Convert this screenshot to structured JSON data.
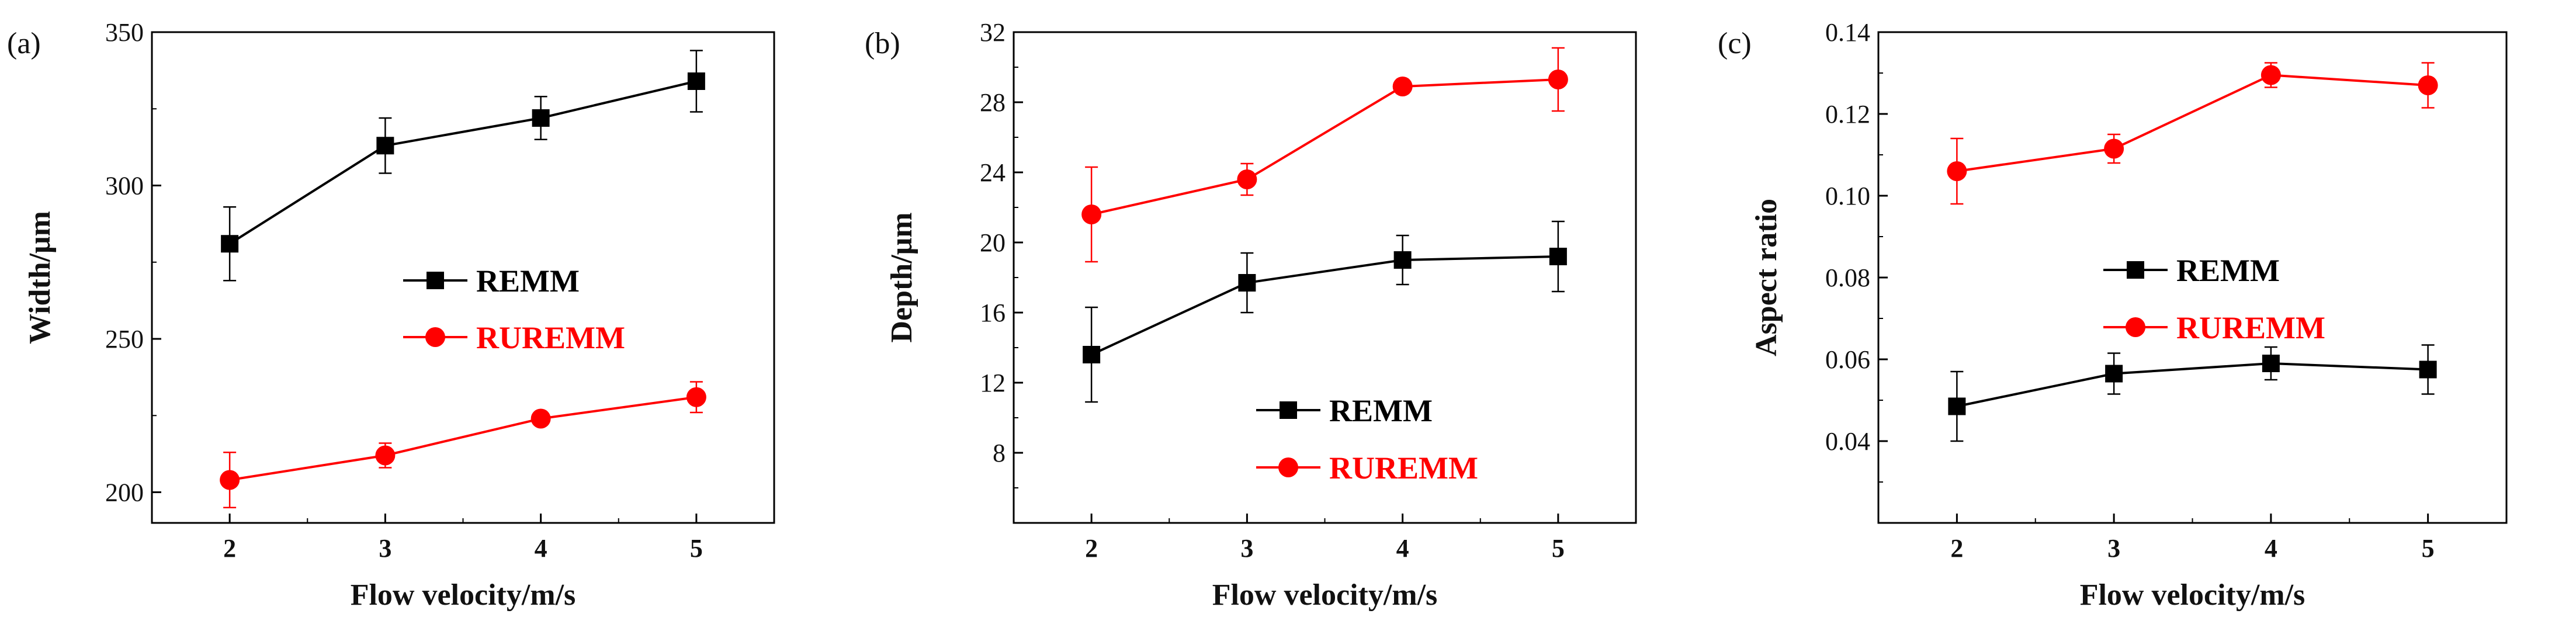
{
  "chart_data": [
    {
      "type": "line",
      "panel_label": "(a)",
      "title": "",
      "xlabel": "Flow velocity/m/s",
      "ylabel": "Width/μm",
      "x": [
        2,
        3,
        4,
        5
      ],
      "xlim": [
        1.5,
        5.5
      ],
      "ylim": [
        190,
        350
      ],
      "yticks": [
        200,
        250,
        300,
        350
      ],
      "grid": false,
      "legend_position": "center-right",
      "series": [
        {
          "name": "REMM",
          "color": "#000000",
          "marker": "square",
          "values": [
            281,
            313,
            322,
            334
          ],
          "errors": [
            12,
            9,
            7,
            10
          ]
        },
        {
          "name": "RUREMM",
          "color": "#ff0000",
          "marker": "circle",
          "values": [
            204,
            212,
            224,
            231
          ],
          "errors": [
            9,
            4,
            2,
            5
          ]
        }
      ]
    },
    {
      "type": "line",
      "panel_label": "(b)",
      "title": "",
      "xlabel": "Flow velocity/m/s",
      "ylabel": "Depth/μm",
      "x": [
        2,
        3,
        4,
        5
      ],
      "xlim": [
        1.5,
        5.5
      ],
      "ylim": [
        4,
        32
      ],
      "yticks": [
        8,
        12,
        16,
        20,
        24,
        28,
        32
      ],
      "grid": false,
      "legend_position": "bottom-center",
      "series": [
        {
          "name": "REMM",
          "color": "#000000",
          "marker": "square",
          "values": [
            13.6,
            17.7,
            19.0,
            19.2
          ],
          "errors": [
            2.7,
            1.7,
            1.4,
            2.0
          ]
        },
        {
          "name": "RUREMM",
          "color": "#ff0000",
          "marker": "circle",
          "values": [
            21.6,
            23.6,
            28.9,
            29.3
          ],
          "errors": [
            2.7,
            0.9,
            0.4,
            1.8
          ]
        }
      ]
    },
    {
      "type": "line",
      "panel_label": "(c)",
      "title": "",
      "xlabel": "Flow velocity/m/s",
      "ylabel": "Aspect ratio",
      "x": [
        2,
        3,
        4,
        5
      ],
      "xlim": [
        1.5,
        5.5
      ],
      "ylim": [
        0.02,
        0.14
      ],
      "yticks": [
        0.04,
        0.06,
        0.08,
        0.1,
        0.12,
        0.14
      ],
      "ytick_labels": [
        "0.04",
        "0.06",
        "0.08",
        "0.10",
        "0.12",
        "0.14"
      ],
      "grid": false,
      "legend_position": "center-right",
      "series": [
        {
          "name": "REMM",
          "color": "#000000",
          "marker": "square",
          "values": [
            0.0485,
            0.0565,
            0.059,
            0.0575
          ],
          "errors": [
            0.0085,
            0.005,
            0.004,
            0.006
          ]
        },
        {
          "name": "RUREMM",
          "color": "#ff0000",
          "marker": "circle",
          "values": [
            0.106,
            0.1115,
            0.1295,
            0.127
          ],
          "errors": [
            0.008,
            0.0035,
            0.003,
            0.0055
          ]
        }
      ]
    }
  ]
}
